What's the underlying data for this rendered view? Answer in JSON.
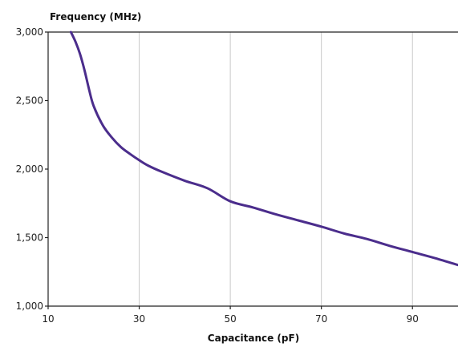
{
  "chart_data": {
    "type": "line",
    "xlabel": "Capacitance (pF)",
    "ylabel": "Frequency (MHz)",
    "xlim": [
      10,
      100
    ],
    "ylim": [
      1000,
      3000
    ],
    "x_ticks": [
      10,
      30,
      50,
      70,
      90
    ],
    "x_tick_labels": [
      "10",
      "30",
      "50",
      "70",
      "90"
    ],
    "y_ticks": [
      1000,
      1500,
      2000,
      2500,
      3000
    ],
    "y_tick_labels": [
      "1,000",
      "1,500",
      "2,000",
      "2,500",
      "3,000"
    ],
    "grid": "vertical",
    "series": [
      {
        "x": [
          15,
          16,
          17,
          18,
          19,
          20,
          22,
          24,
          26,
          28,
          30,
          32,
          35,
          40,
          45,
          50,
          55,
          60,
          65,
          70,
          75,
          80,
          85,
          90,
          95,
          100
        ],
        "y": [
          3000,
          2930,
          2840,
          2720,
          2580,
          2460,
          2320,
          2230,
          2160,
          2110,
          2065,
          2025,
          1980,
          1915,
          1860,
          1765,
          1720,
          1670,
          1625,
          1580,
          1530,
          1490,
          1440,
          1395,
          1350,
          1300
        ]
      }
    ],
    "line_color": "#4b2d8c",
    "grid_color": "#c8c8c8"
  }
}
